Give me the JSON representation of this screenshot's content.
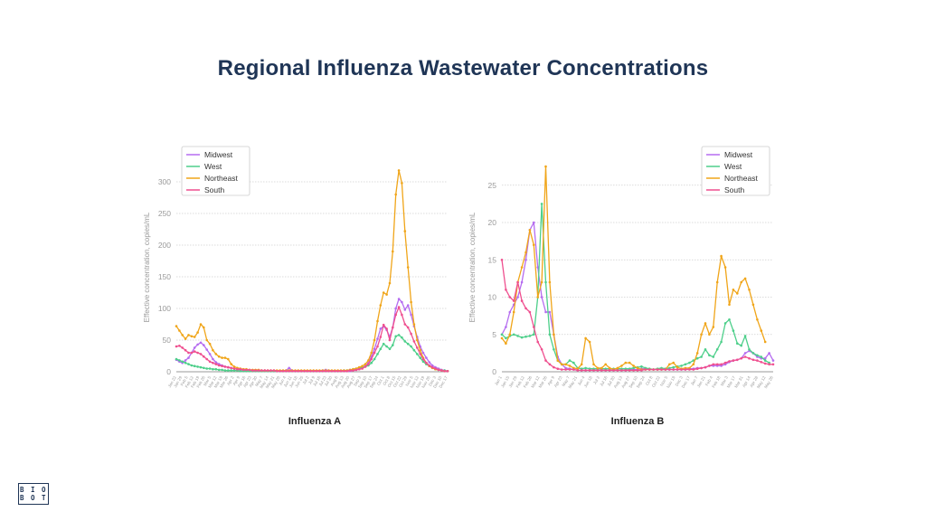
{
  "page": {
    "title": "Regional Influenza Wastewater Concentrations"
  },
  "logo": {
    "text": "BIOBOT"
  },
  "colors": {
    "Midwest": "#b56cf0",
    "West": "#4dcf8a",
    "Northeast": "#f0a519",
    "South": "#ef4f8f",
    "title": "#1f3556",
    "grid": "#cccccc",
    "axis": "#9a9a9a"
  },
  "chart_data": [
    {
      "type": "line",
      "title": "Influenza A",
      "ylabel": "Effective concentration, copies/mL",
      "xlabel": "",
      "ylim": [
        0,
        330
      ],
      "yticks": [
        0,
        50,
        100,
        150,
        200,
        250,
        300
      ],
      "grid": true,
      "legend_position": "top-left",
      "series": [
        {
          "name": "Midwest",
          "color": "#b56cf0",
          "values": [
            19,
            16,
            14,
            18,
            22,
            30,
            38,
            43,
            46,
            42,
            35,
            28,
            20,
            15,
            12,
            10,
            8,
            7,
            6,
            5,
            4,
            3,
            3,
            2,
            2,
            2,
            2,
            2,
            2,
            2,
            1,
            1,
            1,
            1,
            1,
            1,
            2,
            6,
            2,
            1,
            1,
            1,
            1,
            1,
            1,
            1,
            1,
            1,
            2,
            3,
            2,
            1,
            1,
            1,
            1,
            1,
            1,
            1,
            2,
            3,
            4,
            6,
            9,
            14,
            24,
            36,
            52,
            68,
            72,
            66,
            55,
            70,
            100,
            115,
            110,
            98,
            105,
            90,
            72,
            55,
            40,
            30,
            22,
            15,
            10,
            7,
            5,
            3,
            2,
            1
          ]
        },
        {
          "name": "West",
          "color": "#4dcf8a",
          "values": [
            20,
            18,
            16,
            14,
            12,
            10,
            9,
            8,
            7,
            6,
            5,
            5,
            4,
            4,
            3,
            3,
            2,
            2,
            2,
            2,
            2,
            1,
            1,
            1,
            1,
            1,
            1,
            1,
            1,
            1,
            1,
            1,
            1,
            1,
            1,
            1,
            1,
            1,
            1,
            1,
            1,
            1,
            1,
            1,
            1,
            1,
            1,
            1,
            1,
            1,
            1,
            1,
            1,
            1,
            1,
            2,
            2,
            3,
            4,
            5,
            6,
            7,
            8,
            10,
            14,
            20,
            28,
            36,
            44,
            40,
            36,
            42,
            56,
            58,
            54,
            48,
            44,
            40,
            34,
            28,
            22,
            16,
            12,
            9,
            6,
            4,
            3,
            2,
            2,
            1
          ]
        },
        {
          "name": "Northeast",
          "color": "#f0a519",
          "values": [
            72,
            65,
            58,
            52,
            58,
            56,
            55,
            62,
            75,
            70,
            50,
            44,
            34,
            28,
            24,
            22,
            22,
            20,
            12,
            8,
            6,
            5,
            4,
            4,
            3,
            3,
            3,
            3,
            2,
            2,
            2,
            2,
            2,
            2,
            2,
            2,
            2,
            2,
            2,
            2,
            2,
            2,
            2,
            2,
            2,
            2,
            2,
            2,
            2,
            2,
            2,
            2,
            2,
            2,
            2,
            2,
            2,
            3,
            4,
            5,
            7,
            9,
            12,
            18,
            30,
            50,
            80,
            105,
            125,
            122,
            140,
            190,
            280,
            318,
            298,
            222,
            165,
            110,
            75,
            50,
            34,
            22,
            14,
            9,
            6,
            4,
            3,
            2,
            1,
            1
          ]
        },
        {
          "name": "South",
          "color": "#ef4f8f",
          "values": [
            40,
            41,
            38,
            34,
            30,
            30,
            32,
            30,
            28,
            24,
            20,
            16,
            14,
            12,
            10,
            9,
            8,
            7,
            6,
            5,
            4,
            4,
            3,
            3,
            3,
            2,
            2,
            2,
            2,
            2,
            2,
            2,
            2,
            1,
            1,
            1,
            1,
            1,
            1,
            1,
            1,
            1,
            1,
            1,
            1,
            1,
            1,
            1,
            1,
            1,
            1,
            1,
            1,
            1,
            1,
            1,
            1,
            2,
            2,
            3,
            4,
            5,
            8,
            12,
            20,
            30,
            40,
            55,
            74,
            68,
            50,
            70,
            90,
            102,
            90,
            75,
            70,
            60,
            48,
            38,
            28,
            20,
            14,
            10,
            7,
            5,
            3,
            2,
            1,
            1
          ]
        }
      ],
      "x_ticks": [
        "Jan 22",
        "Jan 29",
        "Feb 5",
        "Feb 12",
        "Feb 19",
        "Feb 26",
        "Mar 5",
        "Mar 12",
        "Mar 19",
        "Mar 26",
        "Apr 2",
        "Apr 9",
        "Apr 16",
        "Apr 23",
        "Apr 30",
        "May 7",
        "May 14",
        "May 21",
        "May 28",
        "Jun 4",
        "Jun 11",
        "Jun 18",
        "Jun 25",
        "Jul 2",
        "Jul 9",
        "Jul 16",
        "Jul 23",
        "Jul 30",
        "Aug 6",
        "Aug 13",
        "Aug 20",
        "Aug 27",
        "Sep 3",
        "Sep 10",
        "Sep 17",
        "Sep 24",
        "Oct 1",
        "Oct 8",
        "Oct 15",
        "Oct 22",
        "Oct 29",
        "Nov 5",
        "Nov 12",
        "Nov 19",
        "Nov 26",
        "Dec 3",
        "Dec 10",
        "Dec 17"
      ]
    },
    {
      "type": "line",
      "title": "Influenza B",
      "ylabel": "Effective concentration, copies/mL",
      "xlabel": "",
      "ylim": [
        0,
        28
      ],
      "yticks": [
        0,
        5,
        10,
        15,
        20,
        25
      ],
      "grid": true,
      "legend_position": "top-right",
      "series": [
        {
          "name": "Midwest",
          "color": "#b56cf0",
          "values": [
            5,
            6,
            8,
            9,
            10,
            12,
            15,
            19,
            20,
            14,
            10,
            8,
            8,
            5,
            2,
            1,
            0.5,
            0.4,
            0.3,
            0.2,
            0.2,
            0.2,
            0.2,
            0.2,
            0.2,
            0.2,
            0.2,
            0.2,
            0.2,
            0.2,
            0.2,
            0.2,
            0.3,
            0.3,
            0.3,
            0.4,
            0.4,
            0.3,
            0.3,
            0.3,
            0.3,
            0.3,
            0.3,
            0.3,
            0.3,
            0.3,
            0.3,
            0.4,
            0.4,
            0.5,
            0.5,
            0.6,
            0.8,
            0.8,
            0.8,
            0.8,
            1,
            1.3,
            1.5,
            1.6,
            1.8,
            2.5,
            2.8,
            2.5,
            2,
            1.8,
            1.8,
            2.5,
            1.5
          ]
        },
        {
          "name": "West",
          "color": "#4dcf8a",
          "values": [
            5,
            4.5,
            4.8,
            5,
            4.8,
            4.6,
            4.7,
            4.8,
            5,
            10,
            22.5,
            12,
            5,
            3,
            1.5,
            1,
            1,
            1.5,
            1.2,
            0.5,
            0.4,
            0.5,
            0.4,
            0.4,
            0.4,
            0.4,
            0.4,
            0.4,
            0.4,
            0.4,
            0.4,
            0.4,
            0.4,
            0.5,
            0.6,
            0.7,
            0.5,
            0.4,
            0.3,
            0.4,
            0.5,
            0.4,
            0.5,
            0.6,
            0.7,
            0.8,
            1,
            1.2,
            1.5,
            1.8,
            2,
            3,
            2.2,
            2,
            3,
            4,
            6.5,
            7,
            5.5,
            3.8,
            3.5,
            4.8,
            3,
            2.5,
            2.2,
            2,
            1.5,
            1.2
          ]
        },
        {
          "name": "Northeast",
          "color": "#f0a519",
          "values": [
            4.5,
            3.8,
            5,
            8,
            12,
            14,
            16,
            19,
            17,
            10,
            12,
            27.5,
            12,
            5,
            1.5,
            1,
            1,
            0.8,
            0.5,
            0.4,
            1,
            4.5,
            4,
            1,
            0.5,
            0.5,
            1,
            0.5,
            0.3,
            0.5,
            0.8,
            1.2,
            1.2,
            0.8,
            0.5,
            0.3,
            0.3,
            0.3,
            0.3,
            0.3,
            0.3,
            0.3,
            1,
            1.2,
            0.6,
            0.4,
            0.5,
            0.5,
            1,
            2.5,
            5,
            6.5,
            5,
            6,
            12,
            15.5,
            14,
            9,
            11,
            10.5,
            12,
            12.5,
            11,
            9,
            7,
            5.5,
            4
          ]
        },
        {
          "name": "South",
          "color": "#ef4f8f",
          "values": [
            15,
            11,
            10,
            9.5,
            12,
            9.5,
            8.5,
            8,
            6,
            4,
            3,
            1.5,
            1,
            0.6,
            0.4,
            0.3,
            0.3,
            0.3,
            0.3,
            0.2,
            0.2,
            0.2,
            0.2,
            0.2,
            0.2,
            0.2,
            0.2,
            0.2,
            0.2,
            0.2,
            0.2,
            0.2,
            0.2,
            0.2,
            0.2,
            0.2,
            0.3,
            0.3,
            0.3,
            0.3,
            0.3,
            0.3,
            0.3,
            0.3,
            0.3,
            0.3,
            0.3,
            0.3,
            0.3,
            0.4,
            0.5,
            0.6,
            0.8,
            1,
            1,
            1,
            1.2,
            1.4,
            1.5,
            1.6,
            1.8,
            2,
            1.8,
            1.6,
            1.5,
            1.3,
            1.1,
            1,
            1
          ]
        }
      ],
      "x_ticks": [
        "Jan 1",
        "Jan 15",
        "Jan 29",
        "Feb 12",
        "Feb 26",
        "Mar 12",
        "Mar 26",
        "Apr 9",
        "Apr 23",
        "May 7",
        "May 21",
        "Jun 4",
        "Jun 18",
        "Jul 2",
        "Jul 16",
        "Jul 30",
        "Aug 13",
        "Aug 27",
        "Sep 10",
        "Sep 24",
        "Oct 8",
        "Oct 22",
        "Nov 5",
        "Nov 19",
        "Dec 3",
        "Dec 17",
        "Jan 7",
        "Jan 21",
        "Feb 4",
        "Feb 18",
        "Mar 3",
        "Mar 17",
        "Mar 31",
        "Apr 14",
        "Apr 28",
        "May 12",
        "May 26"
      ]
    }
  ]
}
